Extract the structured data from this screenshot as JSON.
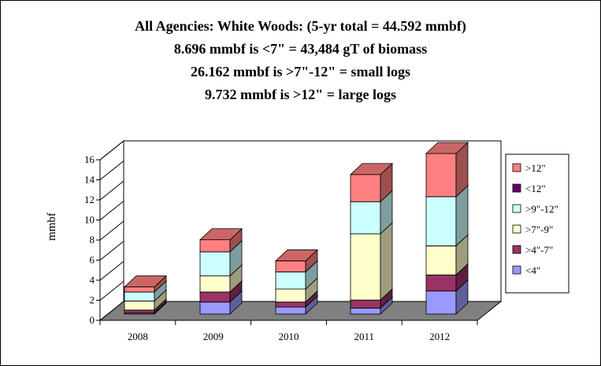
{
  "chart_data": {
    "type": "bar",
    "stacked": true,
    "three_d": true,
    "title_lines": [
      "All Agencies:  White Woods: (5-yr total = 44.592 mmbf)",
      "8.696 mmbf is <7\" = 43,484 gT of biomass",
      "26.162 mmbf is >7\"-12\" = small logs",
      "9.732 mmbf is >12\" = large logs"
    ],
    "ylabel": "mmbf",
    "xlabel": "",
    "ylim": [
      0,
      16
    ],
    "yticks": [
      0,
      2,
      4,
      6,
      8,
      10,
      12,
      14,
      16
    ],
    "grid": false,
    "legend_position": "right",
    "categories": [
      "2008",
      "2009",
      "2010",
      "2011",
      "2012"
    ],
    "series": [
      {
        "name": "<4\"",
        "color": "#9999ff",
        "values": [
          0.1,
          1.2,
          0.7,
          0.6,
          2.3
        ]
      },
      {
        "name": ">4\"-7\"",
        "color": "#993366",
        "values": [
          0.3,
          1.0,
          0.5,
          0.8,
          1.6
        ]
      },
      {
        "name": ">7\"-9\"",
        "color": "#ffffcc",
        "values": [
          0.9,
          1.6,
          1.3,
          6.6,
          2.9
        ]
      },
      {
        "name": ">9\"-12\"",
        "color": "#ccffff",
        "values": [
          0.9,
          2.4,
          1.7,
          3.2,
          4.9
        ]
      },
      {
        "name": "<12\"",
        "color": "#660066",
        "values": [
          0,
          0,
          0,
          0,
          0
        ]
      },
      {
        "name": ">12\"",
        "color": "#ff8080",
        "values": [
          0.5,
          1.2,
          1.1,
          2.7,
          4.3
        ]
      }
    ]
  }
}
